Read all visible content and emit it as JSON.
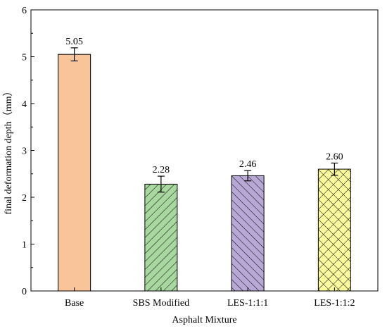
{
  "chart_data": {
    "type": "bar",
    "categories": [
      "Base",
      "SBS Modified",
      "LES-1:1:1",
      "LES-1:1:2"
    ],
    "values": [
      5.05,
      2.28,
      2.46,
      2.6
    ],
    "value_labels": [
      "5.05",
      "2.28",
      "2.46",
      "2.60"
    ],
    "errors": [
      0.14,
      0.17,
      0.11,
      0.13
    ],
    "xlabel": "Asphalt Mixture",
    "ylabel": "final deformation depth（mm）",
    "ylim": [
      0,
      6
    ],
    "yticks": [
      0,
      1,
      2,
      3,
      4,
      5,
      6
    ],
    "grid": false,
    "legend": "none",
    "bar_colors": [
      "#f9c49a",
      "#a8d8a0",
      "#b8a8d6",
      "#fcfa9e"
    ],
    "patterns": [
      "none",
      "diagonal-right",
      "diagonal-left",
      "crosshatch"
    ]
  }
}
